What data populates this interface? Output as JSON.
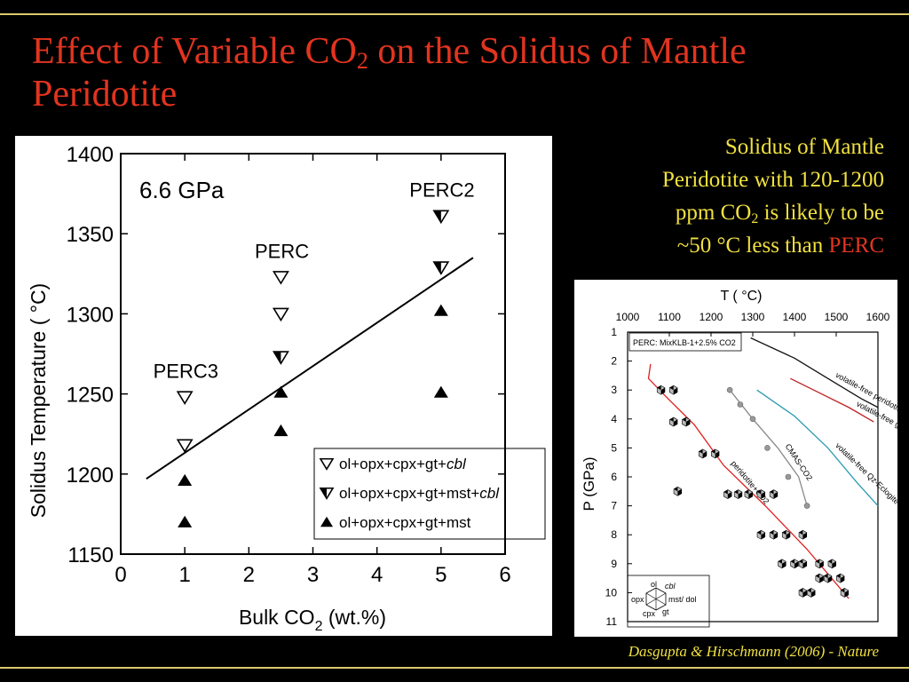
{
  "slide": {
    "title_line1_a": "Effect of Variable CO",
    "title_line1_sub": "2",
    "title_line1_b": " on the Solidus of Mantle",
    "title_line2": "Peridotite",
    "side_text": {
      "line1": "Solidus of Mantle",
      "line2": "Peridotite with 120-1200",
      "line3_a": "ppm CO",
      "line3_sub": "2",
      "line3_b": " is likely to be",
      "line4_a": "~50 °C less than ",
      "line4_hl": "PERC"
    },
    "credit": "Dasgupta & Hirschmann (2006) - Nature",
    "colors": {
      "title": "#e2341f",
      "side": "#f0e040",
      "rule": "#d9c96a",
      "background": "#000000"
    }
  },
  "chart_data": [
    {
      "type": "scatter",
      "annotation_pressure": "6.6 GPa",
      "xlabel_a": "Bulk CO",
      "xlabel_sub": "2",
      "xlabel_b": " (wt.%)",
      "ylabel": "Solidus Temperature ( °C)",
      "xlim": [
        0,
        6
      ],
      "ylim": [
        1150,
        1400
      ],
      "xticks": [
        0,
        1,
        2,
        3,
        4,
        5,
        6
      ],
      "yticks": [
        1150,
        1200,
        1250,
        1300,
        1350,
        1400
      ],
      "grid": false,
      "legend_position": "bottom-right",
      "series": [
        {
          "name": "ol+opx+cpx+gt+",
          "name_italic": "cbl",
          "marker": "open-down-triangle",
          "points": [
            [
              1,
              1248
            ],
            [
              1,
              1218
            ],
            [
              2.5,
              1323
            ],
            [
              2.5,
              1300
            ]
          ]
        },
        {
          "name": "ol+opx+cpx+gt+mst+",
          "name_italic": "cbl",
          "marker": "half-down-triangle",
          "points": [
            [
              2.5,
              1273
            ],
            [
              5,
              1361
            ],
            [
              5,
              1329
            ]
          ]
        },
        {
          "name": "ol+opx+cpx+gt+mst",
          "name_italic": "",
          "marker": "filled-up-triangle",
          "points": [
            [
              1,
              1196
            ],
            [
              1,
              1170
            ],
            [
              2.5,
              1251
            ],
            [
              2.5,
              1227
            ],
            [
              5,
              1302
            ],
            [
              5,
              1251
            ]
          ]
        }
      ],
      "trend_line": [
        [
          0.4,
          1197
        ],
        [
          5.5,
          1335
        ]
      ],
      "labels": [
        {
          "text": "PERC3",
          "x": 0.6,
          "y": 1260
        },
        {
          "text": "PERC",
          "x": 2.1,
          "y": 1335
        },
        {
          "text": "PERC2",
          "x": 4.6,
          "y": 1373
        }
      ]
    },
    {
      "type": "scatter",
      "xlabel": "T ( °C)",
      "ylabel": "P (GPa)",
      "xlim": [
        1000,
        1600
      ],
      "ylim": [
        11,
        1
      ],
      "xticks": [
        1000,
        1100,
        1200,
        1300,
        1400,
        1500,
        1600
      ],
      "yticks": [
        1,
        2,
        3,
        4,
        5,
        6,
        7,
        8,
        9,
        10,
        11
      ],
      "legend_title": "PERC: MixKLB-1+2.5% CO2",
      "legend_position": "top-left",
      "curves": [
        {
          "name": "volatile-free peridotite",
          "color": "#111111",
          "points": [
            [
              1295,
              1.2
            ],
            [
              1400,
              1.9
            ],
            [
              1480,
              2.6
            ],
            [
              1560,
              3.3
            ],
            [
              1600,
              3.6
            ]
          ]
        },
        {
          "name": "volatile-free gt-pyroxenite",
          "color": "#c02020",
          "points": [
            [
              1390,
              2.6
            ],
            [
              1460,
              3.1
            ],
            [
              1530,
              3.6
            ],
            [
              1590,
              4.1
            ]
          ]
        },
        {
          "name": "volatile-free Qz-Eclogite",
          "color": "#2a9bb0",
          "points": [
            [
              1310,
              3.0
            ],
            [
              1400,
              3.9
            ],
            [
              1480,
              5.0
            ],
            [
              1550,
              6.2
            ],
            [
              1600,
              7.0
            ]
          ]
        },
        {
          "name": "CMAS-CO2",
          "color": "#888888",
          "points": [
            [
              1245,
              3.0
            ],
            [
              1300,
              4.0
            ],
            [
              1360,
              5.0
            ],
            [
              1410,
              6.0
            ],
            [
              1430,
              7.0
            ]
          ]
        },
        {
          "name": "peridotite+CO2",
          "color": "#e02020",
          "points": [
            [
              1055,
              2.1
            ],
            [
              1050,
              2.6
            ],
            [
              1090,
              3.2
            ],
            [
              1160,
              4.2
            ],
            [
              1230,
              5.6
            ],
            [
              1330,
              7.0
            ],
            [
              1430,
              8.5
            ],
            [
              1530,
              10.2
            ]
          ]
        }
      ],
      "experiment_points": [
        [
          1080,
          3.0
        ],
        [
          1110,
          3.0
        ],
        [
          1110,
          4.1
        ],
        [
          1140,
          4.1
        ],
        [
          1180,
          5.2
        ],
        [
          1210,
          5.2
        ],
        [
          1120,
          6.5
        ],
        [
          1240,
          6.6
        ],
        [
          1265,
          6.6
        ],
        [
          1290,
          6.6
        ],
        [
          1320,
          6.6
        ],
        [
          1350,
          6.6
        ],
        [
          1320,
          8.0
        ],
        [
          1350,
          8.0
        ],
        [
          1380,
          8.0
        ],
        [
          1420,
          8.0
        ],
        [
          1370,
          9.0
        ],
        [
          1400,
          9.0
        ],
        [
          1420,
          9.0
        ],
        [
          1460,
          9.0
        ],
        [
          1490,
          9.0
        ],
        [
          1460,
          9.5
        ],
        [
          1480,
          9.5
        ],
        [
          1510,
          9.5
        ],
        [
          1420,
          10.0
        ],
        [
          1440,
          10.0
        ],
        [
          1520,
          10.0
        ]
      ],
      "cmas_points": [
        [
          1245,
          3.0
        ],
        [
          1270,
          3.5
        ],
        [
          1300,
          4.0
        ],
        [
          1335,
          5.0
        ],
        [
          1385,
          6.0
        ],
        [
          1430,
          7.0
        ]
      ],
      "phase_key": {
        "top": "ol",
        "top_right": "cbl",
        "right": "mst/ dol",
        "bottom_right": "gt",
        "bottom": "cpx",
        "left": "opx"
      }
    }
  ]
}
